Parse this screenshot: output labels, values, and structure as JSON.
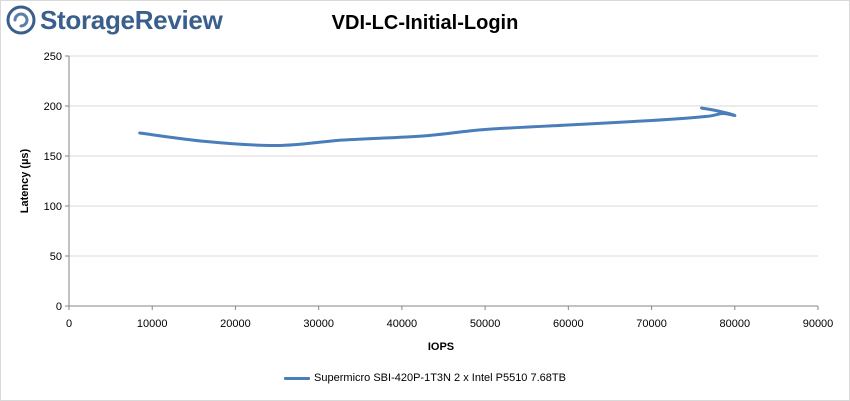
{
  "brand": {
    "name": "StorageReview",
    "icon": "storagereview-logo-icon",
    "color": "#3a5f8c"
  },
  "chart_data": {
    "type": "line",
    "title": "VDI-LC-Initial-Login",
    "xlabel": "IOPS",
    "ylabel": "Latency (µs)",
    "xlim": [
      0,
      90000
    ],
    "ylim": [
      0,
      250
    ],
    "x_ticks": [
      0,
      10000,
      20000,
      30000,
      40000,
      50000,
      60000,
      70000,
      80000,
      90000
    ],
    "y_ticks": [
      0,
      50,
      100,
      150,
      200,
      250
    ],
    "grid": "horizontal",
    "legend_position": "bottom",
    "series": [
      {
        "name": "Supermicro SBI-420P-1T3N 2 x Intel P5510 7.68TB",
        "color": "#4a7ebb",
        "x": [
          8500,
          16500,
          25000,
          33000,
          42500,
          50000,
          60000,
          70000,
          76500,
          78500,
          80000,
          78000,
          76000
        ],
        "y": [
          173,
          164.5,
          160.5,
          166,
          170,
          176.5,
          181,
          185.5,
          189.5,
          192.5,
          190.5,
          195,
          198
        ]
      }
    ]
  }
}
